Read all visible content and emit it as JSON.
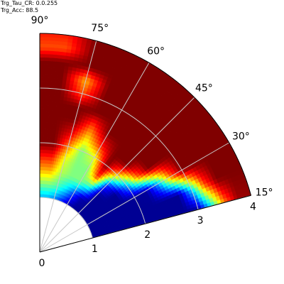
{
  "stats": {
    "line1": "Trg_Tau_CR: 0.0.255",
    "line2": "Trg_Acc: 88.5"
  },
  "chart_data": {
    "type": "heatmap",
    "projection": "polar",
    "theta_range_deg": [
      15,
      90
    ],
    "r_range": [
      0,
      4
    ],
    "r_min_data": 1,
    "angle_ticks": [
      {
        "value": 15,
        "label": "15°"
      },
      {
        "value": 30,
        "label": "30°"
      },
      {
        "value": 45,
        "label": "45°"
      },
      {
        "value": 60,
        "label": "60°"
      },
      {
        "value": 75,
        "label": "75°"
      },
      {
        "value": 90,
        "label": "90°"
      }
    ],
    "radial_ticks": [
      {
        "value": 0,
        "label": "0"
      },
      {
        "value": 1,
        "label": "1"
      },
      {
        "value": 2,
        "label": "2"
      },
      {
        "value": 3,
        "label": "3"
      },
      {
        "value": 4,
        "label": "4"
      }
    ],
    "grid": true,
    "colormap": "jet",
    "vmin": 0,
    "vmax": 1,
    "r_bins": [
      1.0,
      1.25,
      1.5,
      1.75,
      2.0,
      2.25,
      2.5,
      2.75,
      3.0,
      3.25,
      3.5,
      3.75,
      4.0
    ],
    "theta_bins_deg": [
      15,
      22.5,
      30,
      37.5,
      45,
      52.5,
      60,
      67.5,
      75,
      82.5,
      90
    ],
    "values": [
      [
        0.02,
        0.02,
        0.02,
        0.02,
        0.02,
        0.02,
        0.02,
        0.02,
        0.02,
        0.35,
        0.75,
        0.97,
        0.98
      ],
      [
        0.02,
        0.02,
        0.02,
        0.02,
        0.02,
        0.02,
        0.02,
        0.02,
        0.35,
        0.8,
        1.0,
        1.0,
        1.0
      ],
      [
        0.02,
        0.02,
        0.02,
        0.02,
        0.02,
        0.03,
        0.3,
        0.75,
        1.0,
        1.0,
        1.0,
        1.0,
        1.0
      ],
      [
        0.02,
        0.02,
        0.02,
        0.02,
        0.3,
        0.75,
        1.0,
        1.0,
        1.0,
        1.0,
        1.0,
        1.0,
        1.0
      ],
      [
        0.02,
        0.02,
        0.02,
        0.2,
        0.7,
        1.0,
        1.0,
        1.0,
        1.0,
        1.0,
        1.0,
        1.0,
        1.0
      ],
      [
        0.02,
        0.05,
        0.4,
        0.85,
        1.0,
        1.0,
        1.0,
        1.0,
        1.0,
        1.0,
        1.0,
        1.0,
        1.0
      ],
      [
        0.05,
        0.2,
        0.5,
        0.5,
        0.6,
        0.85,
        1.0,
        1.0,
        1.0,
        1.0,
        1.0,
        1.0,
        1.0
      ],
      [
        0.15,
        0.35,
        0.5,
        0.5,
        0.5,
        0.65,
        0.8,
        1.0,
        1.0,
        1.0,
        1.0,
        1.0,
        1.0
      ],
      [
        0.25,
        0.45,
        0.55,
        0.6,
        0.75,
        0.9,
        1.0,
        1.0,
        0.8,
        0.7,
        1.0,
        1.0,
        1.0
      ],
      [
        0.3,
        0.5,
        0.7,
        0.85,
        1.0,
        1.0,
        1.0,
        1.0,
        1.0,
        1.0,
        1.0,
        0.8,
        0.85
      ]
    ]
  }
}
